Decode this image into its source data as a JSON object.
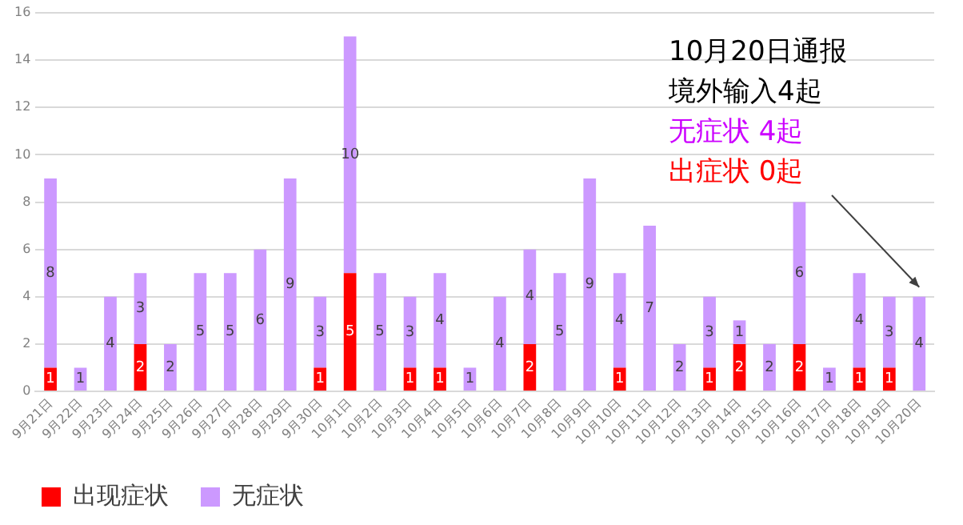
{
  "chart_data": {
    "type": "bar",
    "stacked": true,
    "categories": [
      "9月21日",
      "9月22日",
      "9月23日",
      "9月24日",
      "9月25日",
      "9月26日",
      "9月27日",
      "9月28日",
      "9月29日",
      "9月30日",
      "10月1日",
      "10月2日",
      "10月3日",
      "10月4日",
      "10月5日",
      "10月6日",
      "10月7日",
      "10月8日",
      "10月9日",
      "10月10日",
      "10月11日",
      "10月12日",
      "10月13日",
      "10月14日",
      "10月15日",
      "10月16日",
      "10月17日",
      "10月18日",
      "10月19日",
      "10月20日"
    ],
    "series": [
      {
        "name": "出现症状",
        "color": "#ff0000",
        "values": [
          1,
          0,
          0,
          2,
          0,
          0,
          0,
          0,
          0,
          1,
          5,
          0,
          1,
          1,
          0,
          0,
          2,
          0,
          0,
          1,
          0,
          0,
          1,
          2,
          0,
          2,
          0,
          1,
          1,
          0
        ],
        "value_labels": [
          "1",
          null,
          null,
          "2",
          null,
          null,
          null,
          null,
          null,
          "1",
          "5",
          null,
          "1",
          "1",
          null,
          null,
          "2",
          null,
          null,
          "1",
          null,
          null,
          "1",
          "2",
          null,
          "2",
          null,
          "1",
          "1",
          null
        ]
      },
      {
        "name": "无症状",
        "color": "#cc99ff",
        "values": [
          8,
          1,
          4,
          3,
          2,
          5,
          5,
          6,
          9,
          3,
          10,
          5,
          3,
          4,
          1,
          4,
          4,
          5,
          9,
          4,
          7,
          2,
          3,
          1,
          2,
          6,
          1,
          4,
          3,
          4
        ],
        "value_labels": [
          "8",
          "1",
          "4",
          "3",
          "2",
          "5",
          "5",
          "6",
          "9",
          "3",
          "10",
          "5",
          "3",
          "4",
          "1",
          "4",
          "4",
          "5",
          "9",
          "4",
          "7",
          "2",
          "3",
          "1",
          "2",
          "6",
          "1",
          "4",
          "3",
          "4"
        ]
      }
    ],
    "ylim": [
      0,
      16
    ],
    "yticks": [
      0,
      2,
      4,
      6,
      8,
      10,
      12,
      14,
      16
    ],
    "grid": "y",
    "legend": "bottom left",
    "annotations": [
      "10月20日通报",
      "境外输入4起",
      "无症状 4起",
      {
        "text": "出症状 0起",
        "x": "10月20日",
        "y": 4
      }
    ]
  }
}
